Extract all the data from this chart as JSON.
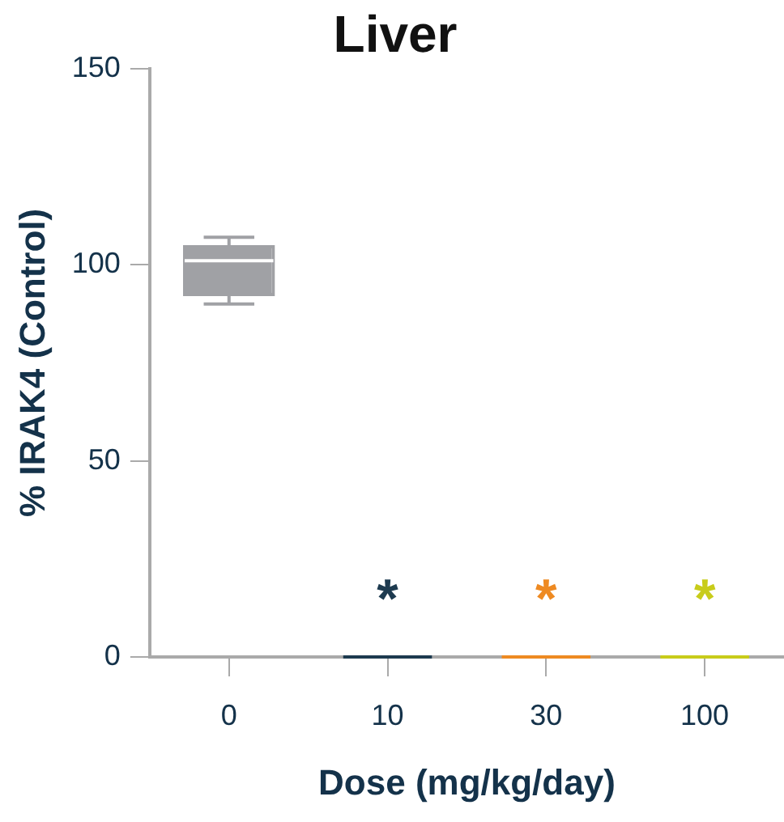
{
  "chart_data": {
    "type": "box",
    "title": "Liver",
    "xlabel": "Dose (mg/kg/day)",
    "ylabel": "% IRAK4 (Control)",
    "categories": [
      "0",
      "10",
      "30",
      "100"
    ],
    "colors": [
      "#a0a1a5",
      "#1d3a4f",
      "#ee8a22",
      "#c8cc1a"
    ],
    "boxes": [
      {
        "low": 90,
        "q1": 92,
        "median": 101,
        "q3": 105,
        "high": 107
      },
      {
        "low": 0,
        "q1": 0,
        "median": 0,
        "q3": 0,
        "high": 0
      },
      {
        "low": 0,
        "q1": 0,
        "median": 0,
        "q3": 0,
        "high": 0
      },
      {
        "low": 0,
        "q1": 0,
        "median": 0,
        "q3": 0,
        "high": 0
      }
    ],
    "ylim": [
      0,
      150
    ],
    "yticks": [
      0,
      50,
      100,
      150
    ],
    "grid": false,
    "legend": false,
    "annotations": [
      "*",
      "*",
      "*"
    ]
  }
}
